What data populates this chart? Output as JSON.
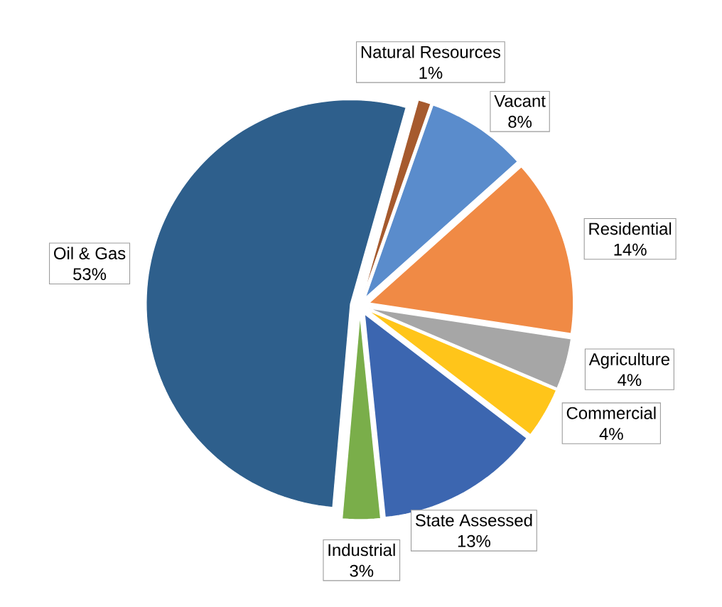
{
  "chart_data": {
    "type": "pie",
    "categories": [
      "Oil & Gas",
      "Natural Resources",
      "Vacant",
      "Residential",
      "Agriculture",
      "Commercial",
      "State Assessed",
      "Industrial"
    ],
    "values": [
      53,
      1,
      8,
      14,
      4,
      4,
      13,
      3
    ],
    "value_labels": [
      "53%",
      "1%",
      "8%",
      "14%",
      "4%",
      "4%",
      "13%",
      "3%"
    ],
    "colors": [
      "#2e5f8c",
      "#a65a2e",
      "#5a8ccc",
      "#f08a45",
      "#a6a6a6",
      "#ffc51a",
      "#3c66b0",
      "#7aae4a"
    ]
  }
}
